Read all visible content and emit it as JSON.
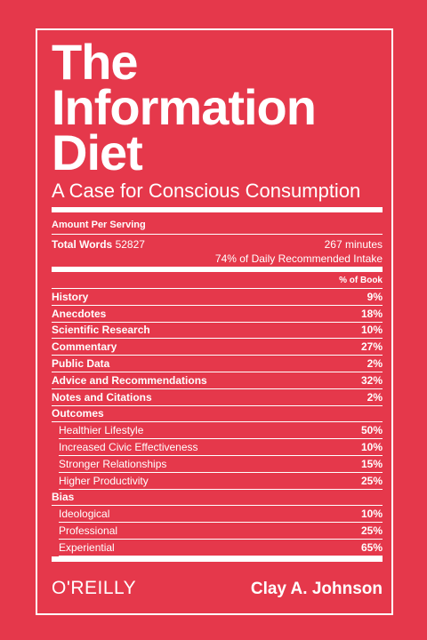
{
  "cover": {
    "title": [
      "The",
      "Information",
      "Diet"
    ],
    "subtitle": "A Case for Conscious Consumption",
    "label": {
      "serving": "Amount Per Serving",
      "total_words_label": "Total Words",
      "total_words": 52827,
      "minutes": "267 minutes",
      "intake": "74% of Daily Recommended Intake",
      "column_header": "% of Book",
      "sections": [
        {
          "label": "History",
          "value": "9%"
        },
        {
          "label": "Anecdotes",
          "value": "18%"
        },
        {
          "label": "Scientific Research",
          "value": "10%"
        },
        {
          "label": "Commentary",
          "value": "27%"
        },
        {
          "label": "Public Data",
          "value": "2%"
        },
        {
          "label": "Advice and Recommendations",
          "value": "32%"
        },
        {
          "label": "Notes and Citations",
          "value": "2%"
        },
        {
          "label": "Outcomes",
          "items": [
            {
              "label": "Healthier Lifestyle",
              "value": "50%"
            },
            {
              "label": "Increased Civic Effectiveness",
              "value": "10%"
            },
            {
              "label": "Stronger Relationships",
              "value": "15%"
            },
            {
              "label": "Higher Productivity",
              "value": "25%"
            }
          ]
        },
        {
          "label": "Bias",
          "items": [
            {
              "label": "Ideological",
              "value": "10%"
            },
            {
              "label": "Professional",
              "value": "25%"
            },
            {
              "label": "Experiential",
              "value": "65%"
            }
          ]
        }
      ]
    },
    "publisher": "O'REILLY",
    "author": "Clay A. Johnson"
  }
}
